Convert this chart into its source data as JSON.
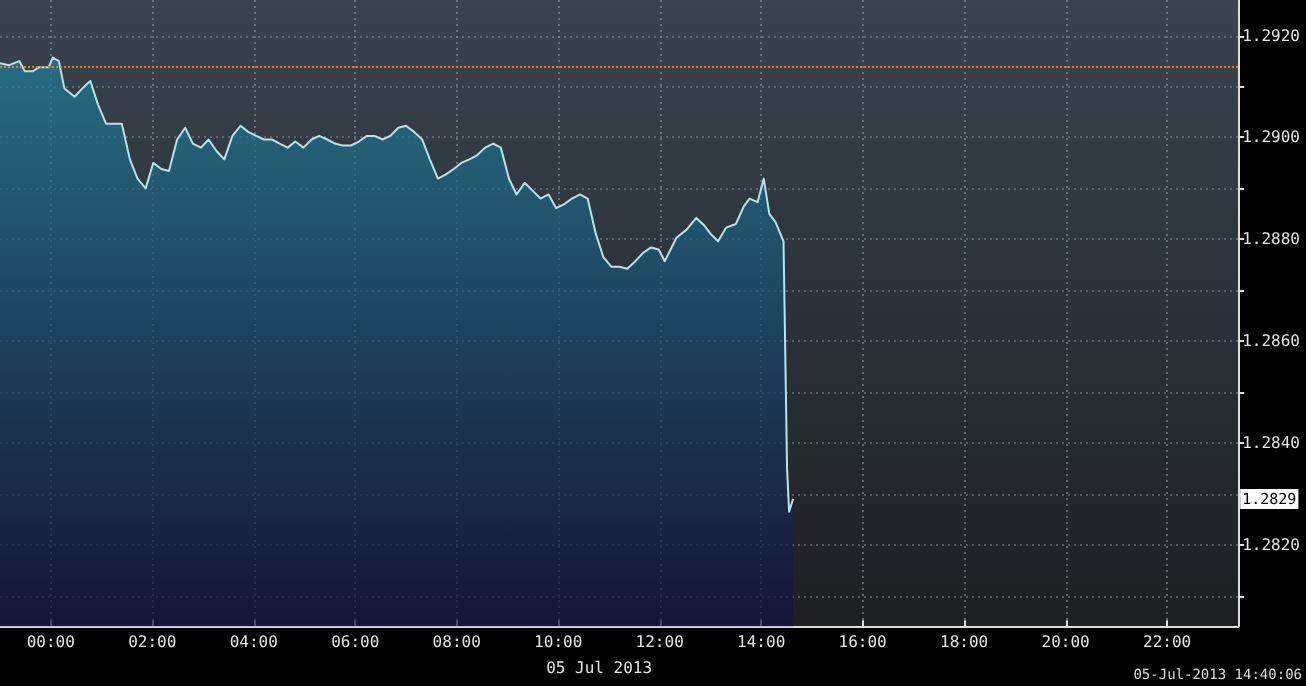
{
  "chart_data": {
    "type": "area",
    "xlabel": "05 Jul 2013",
    "x": [
      -1.0,
      -0.82,
      -0.62,
      -0.51,
      -0.35,
      -0.23,
      -0.04,
      0.04,
      0.16,
      0.27,
      0.47,
      0.62,
      0.78,
      0.93,
      1.09,
      1.25,
      1.4,
      1.56,
      1.71,
      1.87,
      2.02,
      2.18,
      2.33,
      2.49,
      2.65,
      2.8,
      2.96,
      3.11,
      3.27,
      3.42,
      3.58,
      3.74,
      3.89,
      4.05,
      4.2,
      4.36,
      4.51,
      4.67,
      4.82,
      4.98,
      5.14,
      5.29,
      5.45,
      5.6,
      5.76,
      5.91,
      6.07,
      6.23,
      6.38,
      6.54,
      6.69,
      6.85,
      7.0,
      7.16,
      7.32,
      7.47,
      7.63,
      7.78,
      7.94,
      8.09,
      8.25,
      8.4,
      8.56,
      8.72,
      8.87,
      9.03,
      9.18,
      9.34,
      9.49,
      9.65,
      9.81,
      9.96,
      10.12,
      10.27,
      10.43,
      10.58,
      10.74,
      10.89,
      11.05,
      11.21,
      11.36,
      11.52,
      11.67,
      11.83,
      11.98,
      12.1,
      12.33,
      12.53,
      12.72,
      12.88,
      13.0,
      13.15,
      13.31,
      13.5,
      13.66,
      13.77,
      13.93,
      14.05,
      14.16,
      14.28,
      14.44,
      14.51,
      14.55,
      14.63
    ],
    "series": [
      {
        "color": "#1f7f99",
        "values": [
          1.29146,
          1.29142,
          1.2915,
          1.2913,
          1.2913,
          1.29138,
          1.29138,
          1.29157,
          1.2915,
          1.29096,
          1.2908,
          1.29096,
          1.29111,
          1.29065,
          1.29027,
          1.29027,
          1.29027,
          1.28957,
          1.28919,
          1.289,
          1.2895,
          1.28938,
          1.28934,
          1.28996,
          1.29019,
          1.28988,
          1.2898,
          1.28996,
          1.28973,
          1.28957,
          1.29003,
          1.29023,
          1.29011,
          1.29003,
          1.28996,
          1.28996,
          1.28988,
          1.2898,
          1.28992,
          1.2898,
          1.28996,
          1.29003,
          1.28996,
          1.28988,
          1.28984,
          1.28984,
          1.28992,
          1.29003,
          1.29003,
          1.28996,
          1.29003,
          1.29019,
          1.29023,
          1.29011,
          1.28996,
          1.28957,
          1.28919,
          1.28927,
          1.28938,
          1.2895,
          1.28957,
          1.28965,
          1.2898,
          1.28988,
          1.2898,
          1.28919,
          1.28888,
          1.28911,
          1.28896,
          1.2888,
          1.28888,
          1.28861,
          1.28869,
          1.2888,
          1.28888,
          1.2888,
          1.28811,
          1.28765,
          1.28746,
          1.28746,
          1.28742,
          1.28757,
          1.28773,
          1.28784,
          1.2878,
          1.28757,
          1.28803,
          1.28819,
          1.28842,
          1.28827,
          1.28811,
          1.28796,
          1.28823,
          1.2883,
          1.28865,
          1.2888,
          1.28873,
          1.28919,
          1.2885,
          1.28834,
          1.28796,
          1.2835,
          1.28265,
          1.2829
        ]
      }
    ],
    "xlim": [
      -1,
      23.4
    ],
    "xticks": [
      {
        "value": 0,
        "label": "00:00"
      },
      {
        "value": 2,
        "label": "02:00"
      },
      {
        "value": 4,
        "label": "04:00"
      },
      {
        "value": 6,
        "label": "06:00"
      },
      {
        "value": 8,
        "label": "08:00"
      },
      {
        "value": 10,
        "label": "10:00"
      },
      {
        "value": 12,
        "label": "12:00"
      },
      {
        "value": 14,
        "label": "14:00"
      },
      {
        "value": 16,
        "label": "16:00"
      },
      {
        "value": 18,
        "label": "18:00"
      },
      {
        "value": 20,
        "label": "20:00"
      },
      {
        "value": 22,
        "label": "22:00"
      }
    ],
    "ylim": [
      1.2804,
      1.2927
    ],
    "yticks": [
      {
        "value": 1.281,
        "label": null
      },
      {
        "value": 1.282,
        "label": "1.2820"
      },
      {
        "value": 1.283,
        "label": null
      },
      {
        "value": 1.284,
        "label": "1.2840"
      },
      {
        "value": 1.285,
        "label": null
      },
      {
        "value": 1.286,
        "label": "1.2860"
      },
      {
        "value": 1.287,
        "label": null
      },
      {
        "value": 1.288,
        "label": "1.2880"
      },
      {
        "value": 1.289,
        "label": null
      },
      {
        "value": 1.29,
        "label": "1.2900"
      },
      {
        "value": 1.291,
        "label": null
      },
      {
        "value": 1.292,
        "label": "1.2920"
      }
    ],
    "ref_lines": [
      {
        "axis": "y",
        "value": 1.2914,
        "color": "#e0801c",
        "line_style": "dotted"
      }
    ],
    "annotations": [
      {
        "text": "1.2829",
        "y": 1.2829
      },
      "05-Jul-2013 14:40:06"
    ],
    "grid": true,
    "marker": "none",
    "line_style": "solid"
  }
}
